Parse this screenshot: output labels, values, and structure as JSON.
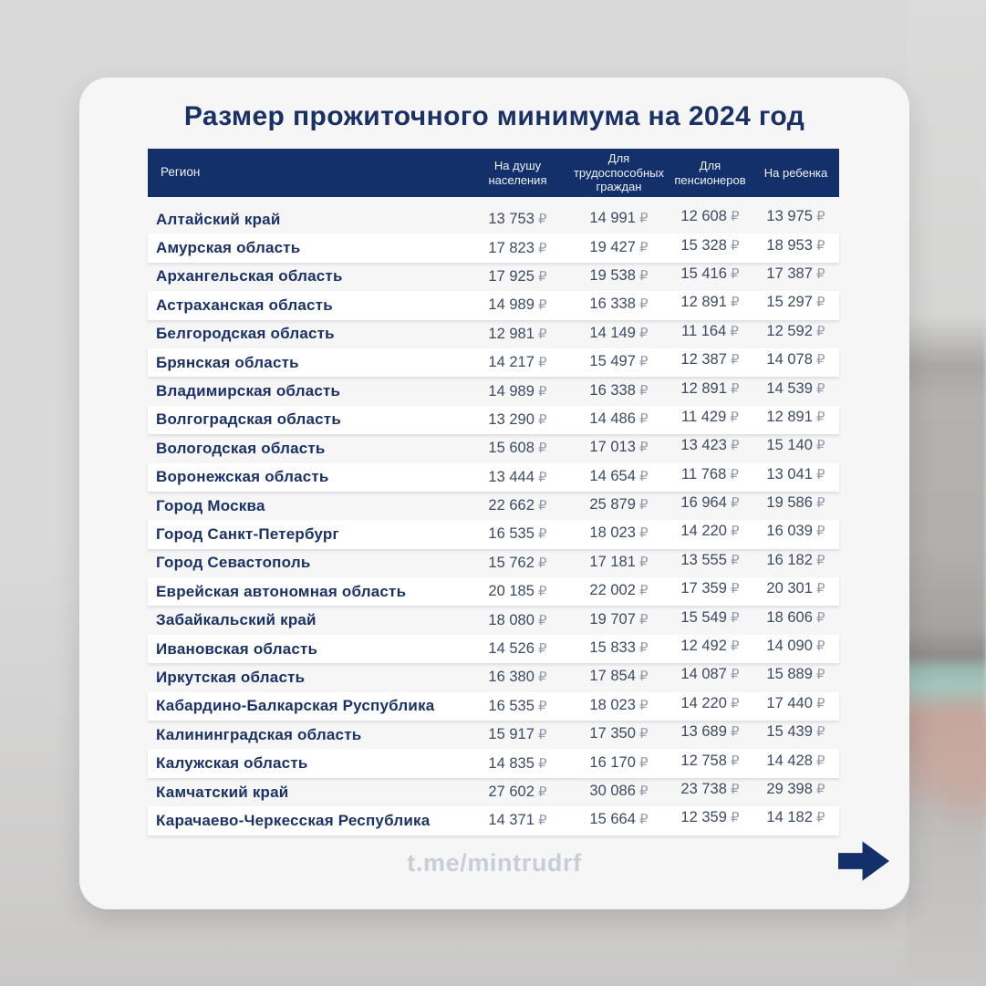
{
  "title": "Размер прожиточного минимума на 2024 год",
  "table": {
    "headers": [
      "Регион",
      "На душу населения",
      "Для трудоспособных граждан",
      "Для пенсионеров",
      "На ребенка"
    ],
    "currency": "₽",
    "rows": [
      {
        "region": "Алтайский край",
        "values": [
          "13 753",
          "14 991",
          "12 608",
          "13 975"
        ]
      },
      {
        "region": "Амурская область",
        "values": [
          "17 823",
          "19 427",
          "15 328",
          "18 953"
        ]
      },
      {
        "region": "Архангельская область",
        "values": [
          "17 925",
          "19 538",
          "15 416",
          "17 387"
        ]
      },
      {
        "region": "Астраханская область",
        "values": [
          "14 989",
          "16 338",
          "12 891",
          "15 297"
        ]
      },
      {
        "region": "Белгородская область",
        "values": [
          "12 981",
          "14 149",
          "11 164",
          "12 592"
        ]
      },
      {
        "region": "Брянская область",
        "values": [
          "14 217",
          "15 497",
          "12 387",
          "14 078"
        ]
      },
      {
        "region": "Владимирская область",
        "values": [
          "14 989",
          "16 338",
          "12 891",
          "14 539"
        ]
      },
      {
        "region": "Волгоградская область",
        "values": [
          "13 290",
          "14 486",
          "11 429",
          "12 891"
        ]
      },
      {
        "region": "Вологодская область",
        "values": [
          "15 608",
          "17 013",
          "13 423",
          "15 140"
        ]
      },
      {
        "region": "Воронежская область",
        "values": [
          "13 444",
          "14 654",
          "11 768",
          "13 041"
        ]
      },
      {
        "region": "Город Москва",
        "values": [
          "22 662",
          "25 879",
          "16 964",
          "19 586"
        ]
      },
      {
        "region": "Город Санкт-Петербург",
        "values": [
          "16 535",
          "18 023",
          "14 220",
          "16 039"
        ]
      },
      {
        "region": "Город Севастополь",
        "values": [
          "15 762",
          "17 181",
          "13 555",
          "16 182"
        ]
      },
      {
        "region": "Еврейская автономная область",
        "values": [
          "20 185",
          "22 002",
          "17 359",
          "20 301"
        ]
      },
      {
        "region": "Забайкальский край",
        "values": [
          "18 080",
          "19 707",
          "15 549",
          "18 606"
        ]
      },
      {
        "region": "Ивановская область",
        "values": [
          "14 526",
          "15 833",
          "12 492",
          "14 090"
        ]
      },
      {
        "region": "Иркутская область",
        "values": [
          "16 380",
          "17 854",
          "14 087",
          "15 889"
        ]
      },
      {
        "region": "Кабардино-Балкарская Руспублика",
        "values": [
          "16 535",
          "18 023",
          "14 220",
          "17 440"
        ]
      },
      {
        "region": "Калининградская область",
        "values": [
          "15 917",
          "17 350",
          "13 689",
          "15 439"
        ]
      },
      {
        "region": "Калужская область",
        "values": [
          "14 835",
          "16 170",
          "12 758",
          "14 428"
        ]
      },
      {
        "region": "Камчатский край",
        "values": [
          "27 602",
          "30 086",
          "23 738",
          "29 398"
        ]
      },
      {
        "region": "Карачаево-Черкесская Республика",
        "values": [
          "14 371",
          "15 664",
          "12 359",
          "14 182"
        ]
      }
    ]
  },
  "footer": {
    "link": "t.me/mintrudrf",
    "arrow_icon": "arrow-right"
  },
  "colors": {
    "navy": "#14306b",
    "title-navy": "#1a3166",
    "region-navy": "#1b3266",
    "value-slate": "#3d4a60",
    "ruble-gray": "#949baa",
    "card-bg": "#f6f6f7",
    "page-bg": "#d7d7d7",
    "footer-gray": "#c8ced7"
  }
}
